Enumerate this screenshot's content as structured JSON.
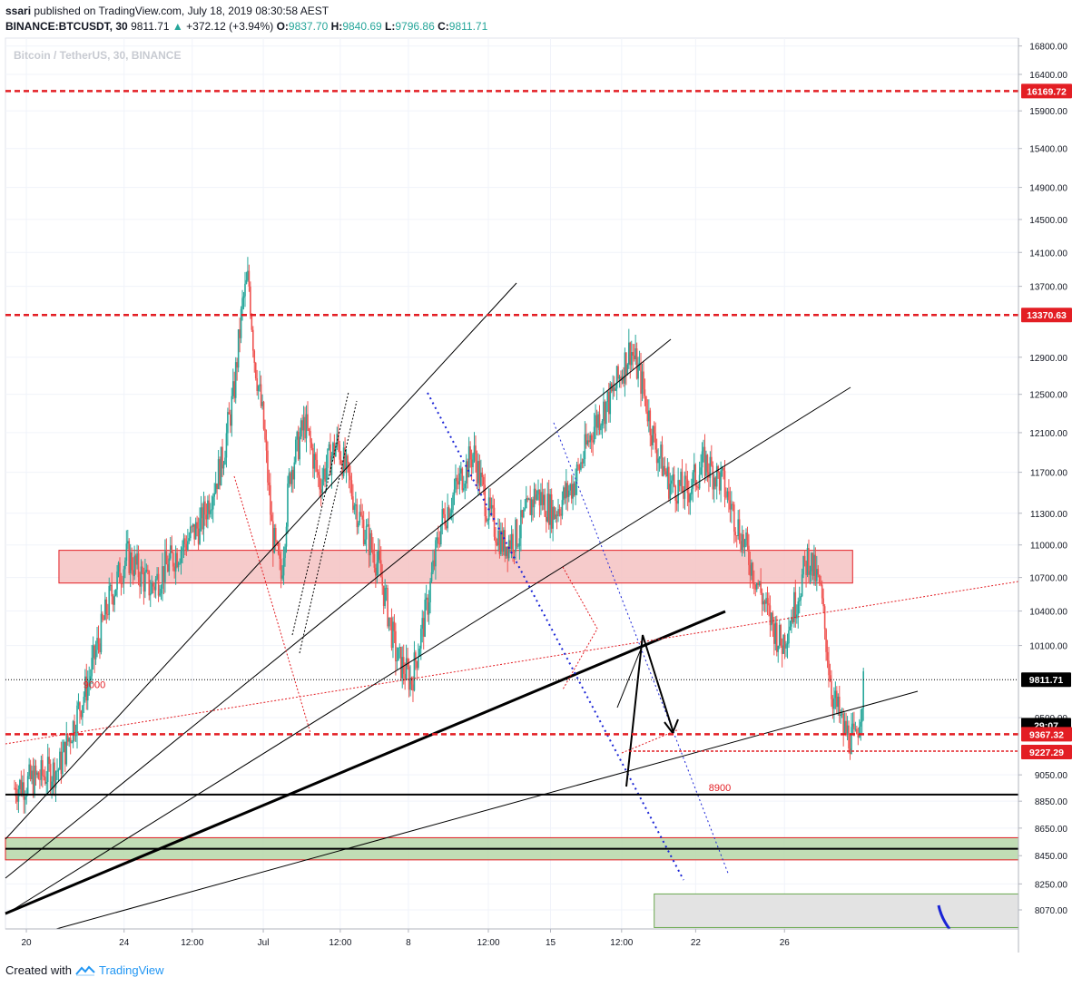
{
  "header": {
    "publisher": "ssari",
    "published_text": "published on TradingView.com, July 18, 2019 08:30:58 AEST",
    "symbol": "BINANCE:BTCUSDT",
    "interval": "30",
    "last": "9811.71",
    "change": "+372.12 (+3.94%)",
    "o_label": "O:",
    "o_val": "9837.70",
    "h_label": "H:",
    "h_val": "9840.69",
    "l_label": "L:",
    "l_val": "9796.86",
    "c_label": "C:",
    "c_val": "9811.71"
  },
  "watermark": "Bitcoin / TetherUS, 30, BINANCE",
  "footer": {
    "created_with": "Created with",
    "brand": "TradingView"
  },
  "colors": {
    "up": "#26a69a",
    "down": "#ef5350",
    "resistance": "#e31e24",
    "trendline": "#000000",
    "channel_blue": "#1a24d6",
    "zone_red": "#f4c2c2",
    "zone_green": "#b6d7a8",
    "zone_grey": "#e3e3e3"
  },
  "chart_data": {
    "type": "candlestick",
    "symbol": "BINANCE:BTCUSDT",
    "interval": "30",
    "y_scale": "log",
    "ylim": [
      7950,
      16800
    ],
    "price_ticks": [
      16800,
      16400,
      15900,
      15400,
      14900,
      14500,
      14100,
      13700,
      12900,
      12500,
      12100,
      11700,
      11300,
      11000,
      10700,
      10400,
      10100,
      9500,
      9050,
      8850,
      8650,
      8450,
      8250,
      8070
    ],
    "time_ticks": [
      "20",
      "24",
      "12:00",
      "Jul",
      "12:00",
      "8",
      "12:00",
      "15",
      "12:00",
      "22",
      "26"
    ],
    "price_labels": [
      {
        "value": 16169.72,
        "text": "16169.72",
        "kind": "resistance"
      },
      {
        "value": 13370.63,
        "text": "13370.63",
        "kind": "resistance"
      },
      {
        "value": 9811.71,
        "text": "9811.71",
        "kind": "last"
      },
      {
        "value": 9440,
        "text": "29:07",
        "kind": "countdown"
      },
      {
        "value": 9367.32,
        "text": "9367.32",
        "kind": "resistance"
      },
      {
        "value": 9227.29,
        "text": "9227.29",
        "kind": "resistance"
      }
    ],
    "annotations": [
      {
        "text": "9000",
        "price": 9000
      },
      {
        "text": "8900",
        "price": 8900
      }
    ],
    "horizontal_lines": [
      {
        "price": 16169.72,
        "style": "dashed",
        "color": "#e31e24"
      },
      {
        "price": 13370.63,
        "style": "dashed",
        "color": "#e31e24"
      },
      {
        "price": 9367.32,
        "style": "dashed",
        "color": "#e31e24"
      },
      {
        "price": 9227.29,
        "style": "dashed",
        "color": "#e31e24"
      },
      {
        "price": 8900,
        "style": "solid",
        "color": "#000000"
      },
      {
        "price": 8500,
        "style": "solid",
        "color": "#000000"
      },
      {
        "price": 9811.71,
        "style": "dotted",
        "color": "#000000"
      }
    ],
    "zones": [
      {
        "name": "resistance zone",
        "from": 10650,
        "to": 10950,
        "color": "#f4c2c2"
      },
      {
        "name": "support zone",
        "from": 8420,
        "to": 8580,
        "color": "#b6d7a8"
      },
      {
        "name": "projection box",
        "from": 7950,
        "to": 8180,
        "color": "#e3e3e3"
      }
    ],
    "price_path": [
      {
        "t": 0,
        "p": 8950
      },
      {
        "t": 1.5,
        "p": 9100
      },
      {
        "t": 2.5,
        "p": 9800
      },
      {
        "t": 3.2,
        "p": 10500
      },
      {
        "t": 3.8,
        "p": 10900
      },
      {
        "t": 4.6,
        "p": 10600
      },
      {
        "t": 5.4,
        "p": 10900
      },
      {
        "t": 6.3,
        "p": 11200
      },
      {
        "t": 7.0,
        "p": 11800
      },
      {
        "t": 7.4,
        "p": 12500
      },
      {
        "t": 7.7,
        "p": 13500
      },
      {
        "t": 7.9,
        "p": 13800
      },
      {
        "t": 8.1,
        "p": 12900
      },
      {
        "t": 8.4,
        "p": 12200
      },
      {
        "t": 8.7,
        "p": 11100
      },
      {
        "t": 9.0,
        "p": 10700
      },
      {
        "t": 9.3,
        "p": 11700
      },
      {
        "t": 9.8,
        "p": 12200
      },
      {
        "t": 10.3,
        "p": 11600
      },
      {
        "t": 10.9,
        "p": 12000
      },
      {
        "t": 11.6,
        "p": 11300
      },
      {
        "t": 12.3,
        "p": 10800
      },
      {
        "t": 12.9,
        "p": 10000
      },
      {
        "t": 13.4,
        "p": 9800
      },
      {
        "t": 13.9,
        "p": 10400
      },
      {
        "t": 14.4,
        "p": 11200
      },
      {
        "t": 15.0,
        "p": 11600
      },
      {
        "t": 15.5,
        "p": 11900
      },
      {
        "t": 16.0,
        "p": 11300
      },
      {
        "t": 16.5,
        "p": 11000
      },
      {
        "t": 17.0,
        "p": 11100
      },
      {
        "t": 17.6,
        "p": 11500
      },
      {
        "t": 18.2,
        "p": 11300
      },
      {
        "t": 18.9,
        "p": 11600
      },
      {
        "t": 19.6,
        "p": 12200
      },
      {
        "t": 20.2,
        "p": 12500
      },
      {
        "t": 20.8,
        "p": 13000
      },
      {
        "t": 21.2,
        "p": 12600
      },
      {
        "t": 21.6,
        "p": 12000
      },
      {
        "t": 22.1,
        "p": 11600
      },
      {
        "t": 22.7,
        "p": 11500
      },
      {
        "t": 23.3,
        "p": 11800
      },
      {
        "t": 23.9,
        "p": 11600
      },
      {
        "t": 24.4,
        "p": 11200
      },
      {
        "t": 24.9,
        "p": 10800
      },
      {
        "t": 25.4,
        "p": 10400
      },
      {
        "t": 25.9,
        "p": 10100
      },
      {
        "t": 26.4,
        "p": 10500
      },
      {
        "t": 26.8,
        "p": 10900
      },
      {
        "t": 27.2,
        "p": 10600
      },
      {
        "t": 27.6,
        "p": 9700
      },
      {
        "t": 28.0,
        "p": 9400
      },
      {
        "t": 28.4,
        "p": 9300
      },
      {
        "t": 28.7,
        "p": 9811.71
      }
    ]
  }
}
